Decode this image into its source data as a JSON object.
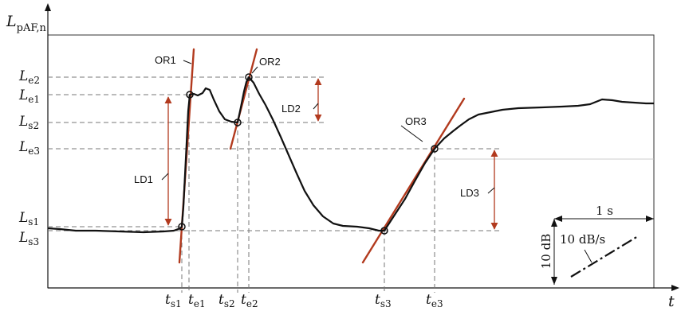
{
  "axes": {
    "y_symbol": "L",
    "y_subscript": "pAF,n",
    "x_symbol": "t"
  },
  "level_labels": [
    {
      "sym": "L",
      "sub": "e2"
    },
    {
      "sym": "L",
      "sub": "e1"
    },
    {
      "sym": "L",
      "sub": "s2"
    },
    {
      "sym": "L",
      "sub": "e3"
    },
    {
      "sym": "L",
      "sub": "s1"
    },
    {
      "sym": "L",
      "sub": "s3"
    }
  ],
  "time_labels": [
    {
      "sym": "t",
      "sub": "s1"
    },
    {
      "sym": "t",
      "sub": "e1"
    },
    {
      "sym": "t",
      "sub": "s2"
    },
    {
      "sym": "t",
      "sub": "e2"
    },
    {
      "sym": "t",
      "sub": "s3"
    },
    {
      "sym": "t",
      "sub": "e3"
    }
  ],
  "onset_rates": [
    "OR1",
    "OR2",
    "OR3"
  ],
  "level_differences": [
    "LD1",
    "LD2",
    "LD3"
  ],
  "scale": {
    "time": "1 s",
    "level": "10 dB",
    "rate": "10 dB/s"
  },
  "colors": {
    "curve": "#111111",
    "tangent": "#b23a1e",
    "arrow": "#b23a1e",
    "guide": "#777777"
  }
}
